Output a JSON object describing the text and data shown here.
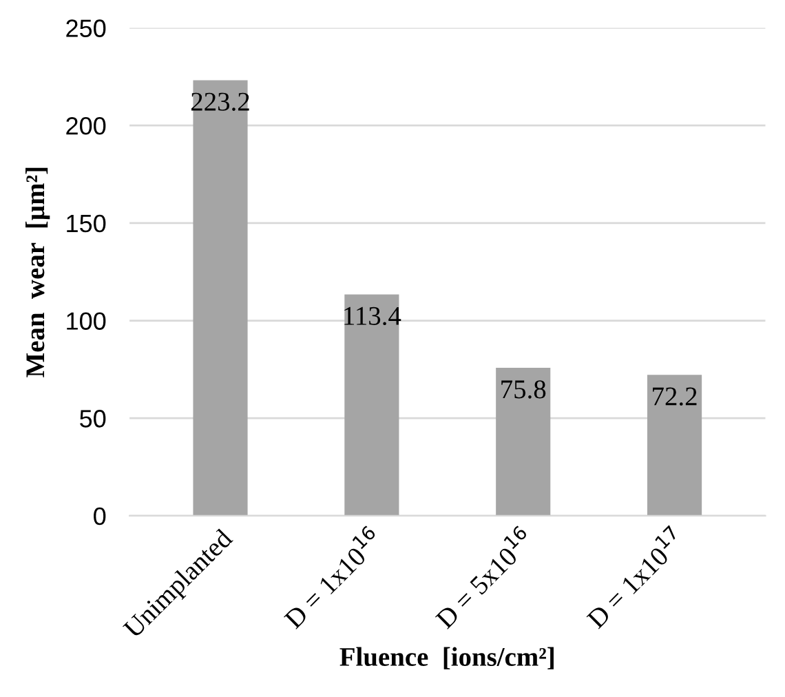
{
  "chart_data": {
    "type": "bar",
    "xlabel": "Fluence  [ions/cm²]",
    "ylabel": "Mean  wear  [µm²]",
    "categories": [
      "Unimplanted",
      "D = 1x10$^{16}$",
      "D = 5x10$^{16}$",
      "D = 1x10$^{17}$"
    ],
    "values": [
      223.2,
      113.4,
      75.8,
      72.2
    ],
    "color": "#a5a5a5",
    "ylim": [
      0,
      250
    ],
    "yticks": [
      0,
      50,
      100,
      150,
      200,
      250
    ],
    "grid": "y",
    "data_labels": true,
    "legend": false
  }
}
